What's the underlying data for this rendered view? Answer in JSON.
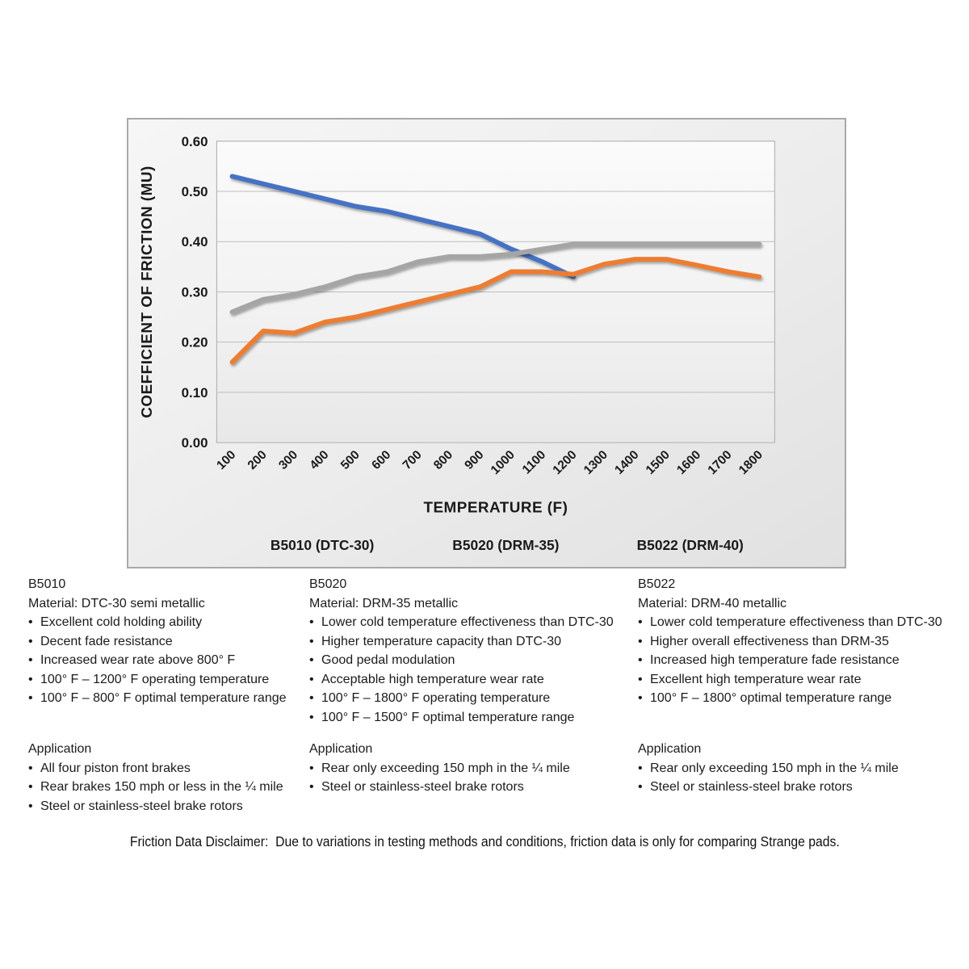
{
  "ui": {
    "bullet": "•"
  },
  "chart_data": {
    "type": "line",
    "title": "",
    "xlabel": "TEMPERATURE (F)",
    "ylabel": "COEFFICIENT OF FRICTION (MU)",
    "categories": [
      100,
      200,
      300,
      400,
      500,
      600,
      700,
      800,
      900,
      1000,
      1100,
      1200,
      1300,
      1400,
      1500,
      1600,
      1700,
      1800
    ],
    "series": [
      {
        "name": "B5010 (DTC-30)",
        "color": "#4472C4",
        "values": [
          0.53,
          0.515,
          0.5,
          0.485,
          0.47,
          0.46,
          0.445,
          0.43,
          0.415,
          0.385,
          0.36,
          0.33
        ]
      },
      {
        "name": "B5020 (DRM-35)",
        "color": "#ED7D31",
        "values": [
          0.16,
          0.222,
          0.218,
          0.24,
          0.25,
          0.265,
          0.28,
          0.295,
          0.31,
          0.34,
          0.34,
          0.335,
          0.355,
          0.365,
          0.365,
          0.353,
          0.34,
          0.33
        ]
      },
      {
        "name": "B5022 (DRM-40)",
        "color": "#A5A5A5",
        "values": [
          0.26,
          0.285,
          0.295,
          0.31,
          0.33,
          0.34,
          0.36,
          0.37,
          0.37,
          0.375,
          0.385,
          0.395,
          0.395,
          0.395,
          0.395,
          0.395,
          0.395,
          0.395
        ]
      }
    ],
    "ylim": [
      0,
      0.6
    ],
    "y_ticks": [
      "0.00",
      "0.10",
      "0.20",
      "0.30",
      "0.40",
      "0.50",
      "0.60"
    ],
    "grid": true,
    "legend_position": "bottom"
  },
  "columns": [
    {
      "heading": "B5010",
      "material": "Material: DTC-30 semi metallic",
      "bullets": [
        "Excellent cold holding ability",
        "Decent fade resistance",
        "Increased wear rate above 800° F",
        "100° F – 1200° F operating temperature",
        "100° F – 800° F optimal temperature range"
      ],
      "application_heading": "Application",
      "application_bullets": [
        "All four piston front brakes",
        "Rear brakes 150 mph or less in the ¼ mile",
        "Steel or stainless-steel brake rotors"
      ]
    },
    {
      "heading": "B5020",
      "material": "Material: DRM-35 metallic",
      "bullets": [
        "Lower cold temperature effectiveness than DTC-30",
        "Higher temperature capacity than DTC-30",
        "Good pedal modulation",
        "Acceptable high temperature wear rate",
        "100° F – 1800° F operating temperature",
        "100° F – 1500° F optimal temperature range"
      ],
      "application_heading": "Application",
      "application_bullets": [
        "Rear only exceeding 150 mph in the ¼ mile",
        "Steel or stainless-steel brake rotors"
      ]
    },
    {
      "heading": "B5022",
      "material": "Material: DRM-40 metallic",
      "bullets": [
        "Lower cold temperature effectiveness than DTC-30",
        "Higher overall effectiveness than DRM-35",
        "Increased high temperature fade resistance",
        "Excellent high temperature wear rate",
        "100° F – 1800° optimal temperature range"
      ],
      "application_heading": "Application",
      "application_bullets": [
        "Rear only exceeding 150 mph in the ¼ mile",
        "Steel or stainless-steel brake rotors"
      ]
    }
  ],
  "disclaimer": "Friction Data Disclaimer:  Due to variations in testing methods and conditions, friction data is only for comparing Strange pads."
}
